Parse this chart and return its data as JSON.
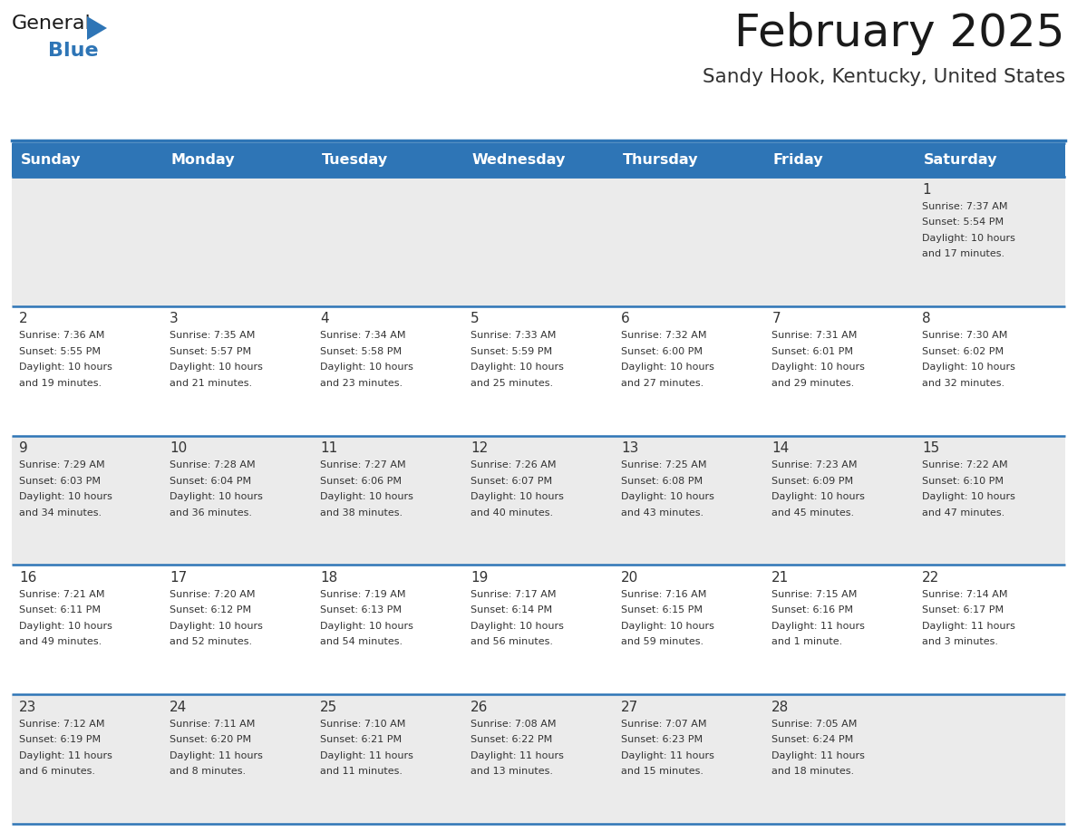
{
  "title": "February 2025",
  "subtitle": "Sandy Hook, Kentucky, United States",
  "header_bg": "#2E75B6",
  "header_text_color": "#FFFFFF",
  "day_names": [
    "Sunday",
    "Monday",
    "Tuesday",
    "Wednesday",
    "Thursday",
    "Friday",
    "Saturday"
  ],
  "cell_bg_odd": "#EBEBEB",
  "cell_bg_even": "#FFFFFF",
  "cell_border_color": "#2E75B6",
  "title_color": "#1A1A1A",
  "subtitle_color": "#333333",
  "day_number_color": "#333333",
  "info_color": "#333333",
  "calendar": [
    [
      null,
      null,
      null,
      null,
      null,
      null,
      {
        "day": 1,
        "sunrise": "7:37 AM",
        "sunset": "5:54 PM",
        "daylight": "10 hours and 17 minutes."
      }
    ],
    [
      {
        "day": 2,
        "sunrise": "7:36 AM",
        "sunset": "5:55 PM",
        "daylight": "10 hours and 19 minutes."
      },
      {
        "day": 3,
        "sunrise": "7:35 AM",
        "sunset": "5:57 PM",
        "daylight": "10 hours and 21 minutes."
      },
      {
        "day": 4,
        "sunrise": "7:34 AM",
        "sunset": "5:58 PM",
        "daylight": "10 hours and 23 minutes."
      },
      {
        "day": 5,
        "sunrise": "7:33 AM",
        "sunset": "5:59 PM",
        "daylight": "10 hours and 25 minutes."
      },
      {
        "day": 6,
        "sunrise": "7:32 AM",
        "sunset": "6:00 PM",
        "daylight": "10 hours and 27 minutes."
      },
      {
        "day": 7,
        "sunrise": "7:31 AM",
        "sunset": "6:01 PM",
        "daylight": "10 hours and 29 minutes."
      },
      {
        "day": 8,
        "sunrise": "7:30 AM",
        "sunset": "6:02 PM",
        "daylight": "10 hours and 32 minutes."
      }
    ],
    [
      {
        "day": 9,
        "sunrise": "7:29 AM",
        "sunset": "6:03 PM",
        "daylight": "10 hours and 34 minutes."
      },
      {
        "day": 10,
        "sunrise": "7:28 AM",
        "sunset": "6:04 PM",
        "daylight": "10 hours and 36 minutes."
      },
      {
        "day": 11,
        "sunrise": "7:27 AM",
        "sunset": "6:06 PM",
        "daylight": "10 hours and 38 minutes."
      },
      {
        "day": 12,
        "sunrise": "7:26 AM",
        "sunset": "6:07 PM",
        "daylight": "10 hours and 40 minutes."
      },
      {
        "day": 13,
        "sunrise": "7:25 AM",
        "sunset": "6:08 PM",
        "daylight": "10 hours and 43 minutes."
      },
      {
        "day": 14,
        "sunrise": "7:23 AM",
        "sunset": "6:09 PM",
        "daylight": "10 hours and 45 minutes."
      },
      {
        "day": 15,
        "sunrise": "7:22 AM",
        "sunset": "6:10 PM",
        "daylight": "10 hours and 47 minutes."
      }
    ],
    [
      {
        "day": 16,
        "sunrise": "7:21 AM",
        "sunset": "6:11 PM",
        "daylight": "10 hours and 49 minutes."
      },
      {
        "day": 17,
        "sunrise": "7:20 AM",
        "sunset": "6:12 PM",
        "daylight": "10 hours and 52 minutes."
      },
      {
        "day": 18,
        "sunrise": "7:19 AM",
        "sunset": "6:13 PM",
        "daylight": "10 hours and 54 minutes."
      },
      {
        "day": 19,
        "sunrise": "7:17 AM",
        "sunset": "6:14 PM",
        "daylight": "10 hours and 56 minutes."
      },
      {
        "day": 20,
        "sunrise": "7:16 AM",
        "sunset": "6:15 PM",
        "daylight": "10 hours and 59 minutes."
      },
      {
        "day": 21,
        "sunrise": "7:15 AM",
        "sunset": "6:16 PM",
        "daylight": "11 hours and 1 minute."
      },
      {
        "day": 22,
        "sunrise": "7:14 AM",
        "sunset": "6:17 PM",
        "daylight": "11 hours and 3 minutes."
      }
    ],
    [
      {
        "day": 23,
        "sunrise": "7:12 AM",
        "sunset": "6:19 PM",
        "daylight": "11 hours and 6 minutes."
      },
      {
        "day": 24,
        "sunrise": "7:11 AM",
        "sunset": "6:20 PM",
        "daylight": "11 hours and 8 minutes."
      },
      {
        "day": 25,
        "sunrise": "7:10 AM",
        "sunset": "6:21 PM",
        "daylight": "11 hours and 11 minutes."
      },
      {
        "day": 26,
        "sunrise": "7:08 AM",
        "sunset": "6:22 PM",
        "daylight": "11 hours and 13 minutes."
      },
      {
        "day": 27,
        "sunrise": "7:07 AM",
        "sunset": "6:23 PM",
        "daylight": "11 hours and 15 minutes."
      },
      {
        "day": 28,
        "sunrise": "7:05 AM",
        "sunset": "6:24 PM",
        "daylight": "11 hours and 18 minutes."
      },
      null
    ]
  ],
  "logo_color_general": "#1A1A1A",
  "logo_color_blue": "#2E75B6",
  "logo_triangle_color": "#2E75B6",
  "fig_width": 11.88,
  "fig_height": 9.18,
  "dpi": 100
}
